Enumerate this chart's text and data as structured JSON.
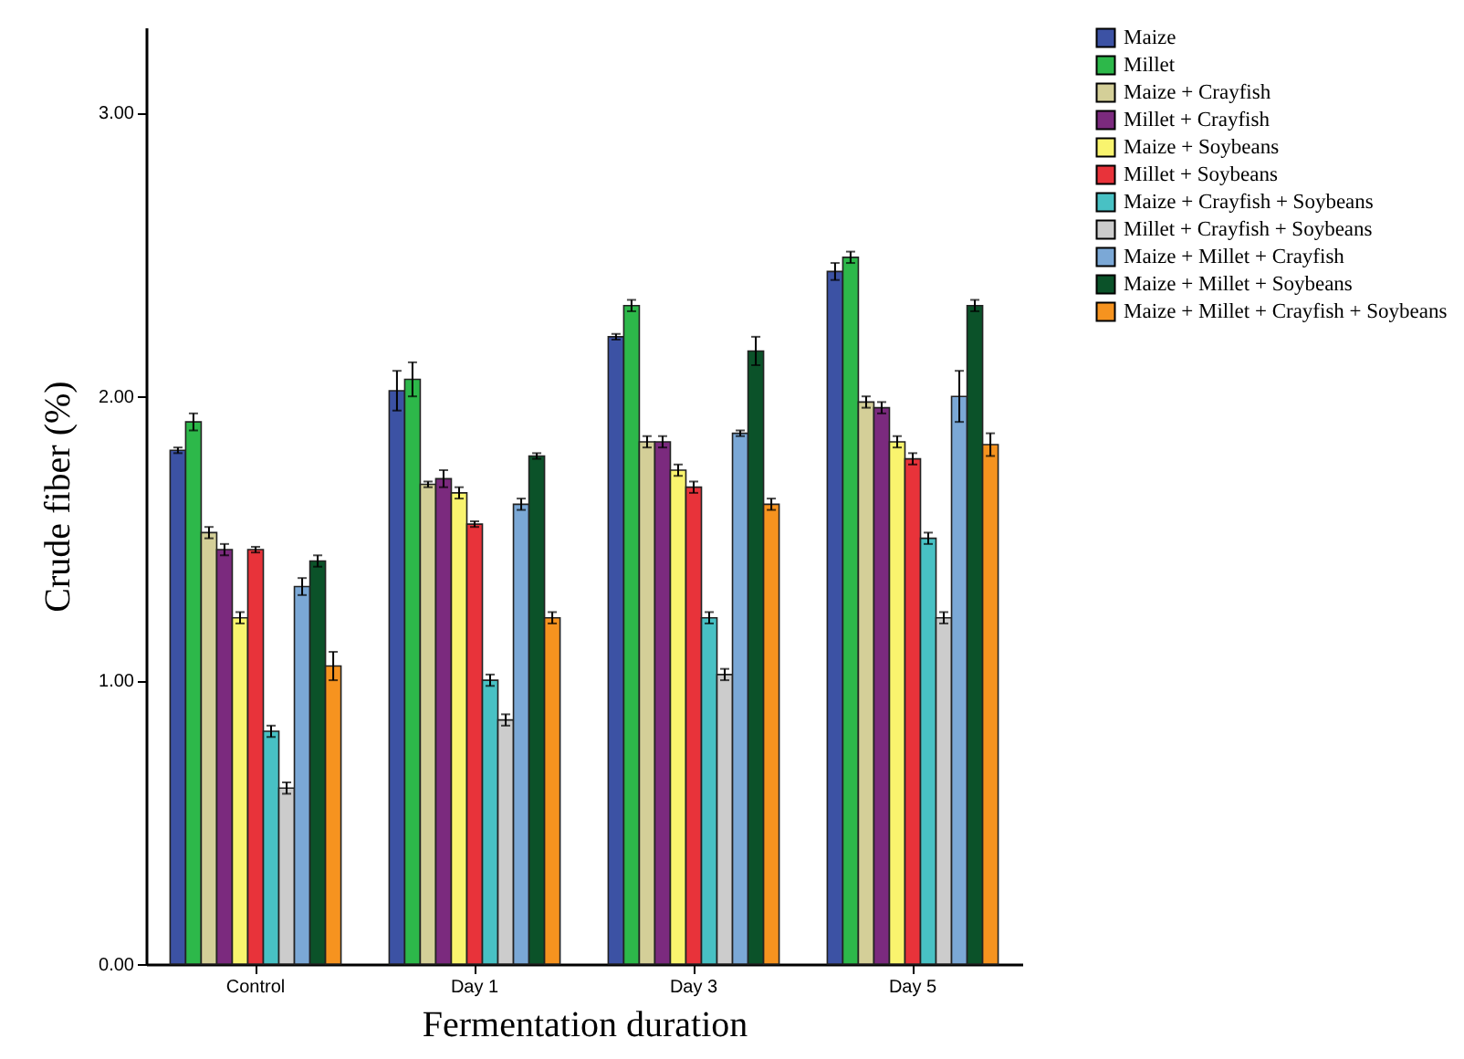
{
  "chart_data": {
    "type": "bar",
    "xlabel": "Fermentation duration",
    "ylabel": "Crude fiber (%)",
    "categories": [
      "Control",
      "Day 1",
      "Day 3",
      "Day 5"
    ],
    "ylim": [
      0,
      3.3
    ],
    "yticks": [
      {
        "value": 0,
        "label": "0.00"
      },
      {
        "value": 1,
        "label": "1.00"
      },
      {
        "value": 2,
        "label": "2.00"
      },
      {
        "value": 3,
        "label": "3.00"
      }
    ],
    "grid": false,
    "legend": "top right",
    "series": [
      {
        "name": "Maize",
        "color": "#3c52a4",
        "values": [
          1.81,
          2.02,
          2.21,
          2.44
        ],
        "errors": [
          0.01,
          0.07,
          0.01,
          0.03
        ]
      },
      {
        "name": "Millet",
        "color": "#2db84a",
        "values": [
          1.91,
          2.06,
          2.32,
          2.49
        ],
        "errors": [
          0.03,
          0.06,
          0.02,
          0.02
        ]
      },
      {
        "name": "Maize + Crayfish",
        "color": "#d4cf98",
        "values": [
          1.52,
          1.69,
          1.84,
          1.98
        ],
        "errors": [
          0.02,
          0.01,
          0.02,
          0.02
        ]
      },
      {
        "name": "Millet + Crayfish",
        "color": "#7b2a7e",
        "values": [
          1.46,
          1.71,
          1.84,
          1.96
        ],
        "errors": [
          0.02,
          0.03,
          0.02,
          0.02
        ]
      },
      {
        "name": "Maize + Soybeans",
        "color": "#f9f46e",
        "values": [
          1.22,
          1.66,
          1.74,
          1.84
        ],
        "errors": [
          0.02,
          0.02,
          0.02,
          0.02
        ]
      },
      {
        "name": "Millet + Soybeans",
        "color": "#e8333a",
        "values": [
          1.46,
          1.55,
          1.68,
          1.78
        ],
        "errors": [
          0.01,
          0.01,
          0.02,
          0.02
        ]
      },
      {
        "name": "Maize + Crayfish + Soybeans",
        "color": "#48c1c4",
        "values": [
          0.82,
          1.0,
          1.22,
          1.5
        ],
        "errors": [
          0.02,
          0.02,
          0.02,
          0.02
        ]
      },
      {
        "name": "Millet + Crayfish + Soybeans",
        "color": "#cccccc",
        "values": [
          0.62,
          0.86,
          1.02,
          1.22
        ],
        "errors": [
          0.02,
          0.02,
          0.02,
          0.02
        ]
      },
      {
        "name": "Maize + Millet + Crayfish",
        "color": "#7ba8d6",
        "values": [
          1.33,
          1.62,
          1.87,
          2.0
        ],
        "errors": [
          0.03,
          0.02,
          0.01,
          0.09
        ]
      },
      {
        "name": "Maize + Millet + Soybeans",
        "color": "#0b5229",
        "values": [
          1.42,
          1.79,
          2.16,
          2.32
        ],
        "errors": [
          0.02,
          0.01,
          0.05,
          0.02
        ]
      },
      {
        "name": "Maize + Millet + Crayfish + Soybeans",
        "color": "#f6931f",
        "values": [
          1.05,
          1.22,
          1.62,
          1.83
        ],
        "errors": [
          0.05,
          0.02,
          0.02,
          0.04
        ]
      }
    ]
  }
}
